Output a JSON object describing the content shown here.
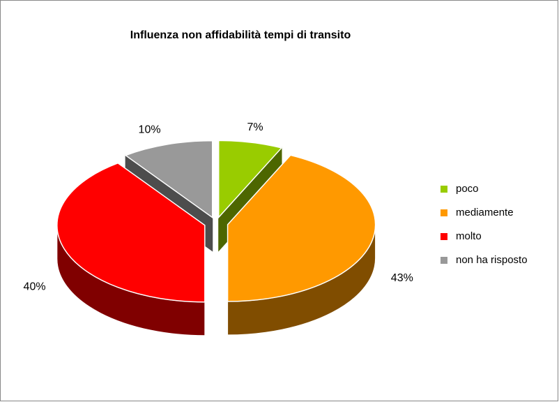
{
  "chart_data": {
    "type": "pie3d",
    "title": "Influenza non affidabilità tempi di transito",
    "categories": [
      "poco",
      "mediamente",
      "molto",
      "non ha risposto"
    ],
    "values": [
      7,
      43,
      40,
      10
    ],
    "value_labels": [
      "7%",
      "43%",
      "40%",
      "10%"
    ],
    "colors": [
      "#99cc00",
      "#ff9900",
      "#ff0000",
      "#999999"
    ],
    "legend": "right"
  }
}
